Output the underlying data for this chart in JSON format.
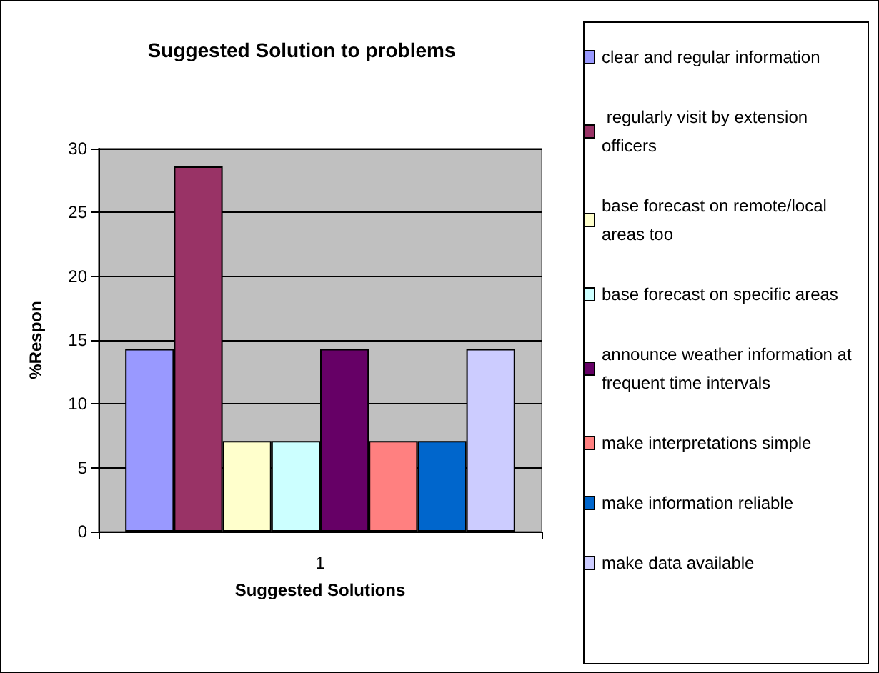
{
  "chart_data": {
    "type": "bar",
    "title": "Suggested Solution to problems",
    "xlabel": "Suggested Solutions",
    "ylabel": "%Respon",
    "categories": [
      "1"
    ],
    "series": [
      {
        "name": "clear and regular information",
        "color": "#9999ff",
        "values": [
          14.3
        ]
      },
      {
        "name": " regularly visit by extension officers",
        "color": "#993366",
        "values": [
          28.6
        ]
      },
      {
        "name": "base forecast on remote/local areas too",
        "color": "#ffffcc",
        "values": [
          7.1
        ]
      },
      {
        "name": "base forecast on specific areas",
        "color": "#ccffff",
        "values": [
          7.1
        ]
      },
      {
        "name": "announce weather information at frequent time intervals",
        "color": "#660066",
        "values": [
          14.3
        ]
      },
      {
        "name": "make interpretations simple",
        "color": "#ff8080",
        "values": [
          7.1
        ]
      },
      {
        "name": "make information reliable",
        "color": "#0066cc",
        "values": [
          7.1
        ]
      },
      {
        "name": "make data available",
        "color": "#ccccff",
        "values": [
          14.3
        ]
      }
    ],
    "ylim": [
      0,
      30
    ],
    "yticks": [
      0,
      5,
      10,
      15,
      20,
      25,
      30
    ],
    "grid": "y",
    "legend": "right"
  }
}
